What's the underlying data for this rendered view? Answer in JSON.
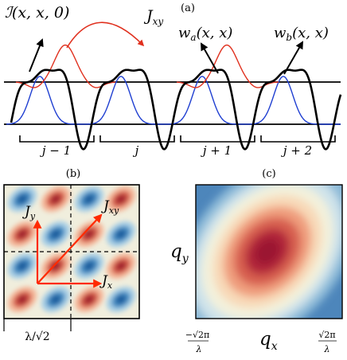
{
  "panel_a": {
    "panel_label": "(a)",
    "label_I": "ℐ(x, x, 0)",
    "label_Jxy": "J",
    "label_Jxy_sub": "xy",
    "label_wa": "w",
    "label_wa_sub": "a",
    "label_wa_arg": "(x, x)",
    "label_wb": "w",
    "label_wb_sub": "b",
    "label_wb_arg": "(x, x)",
    "sites": [
      "j − 1",
      "j",
      "j + 1",
      "j + 2"
    ],
    "colors": {
      "potential": "#000000",
      "wannier_a": "#e0301e",
      "wannier_b": "#1f3fd1",
      "arrow_red": "#e0301e"
    }
  },
  "panel_b": {
    "panel_label": "(b)",
    "label_Jy": "J",
    "label_Jy_sub": "y",
    "label_Jxy": "J",
    "label_Jxy_sub": "xy",
    "label_Jx": "J",
    "label_Jx_sub": "x",
    "scale_label": "λ/√2",
    "colors": {
      "warm": "#b2182b",
      "cool": "#2c7bb6",
      "arrow": "#ff2a00"
    }
  },
  "panel_c": {
    "panel_label": "(c)",
    "ylabel": "q",
    "ylabel_sub": "y",
    "xlabel": "q",
    "xlabel_sub": "x",
    "tick_left_num": "−√2π",
    "tick_left_den": "λ",
    "tick_right_num": "√2π",
    "tick_right_den": "λ"
  }
}
